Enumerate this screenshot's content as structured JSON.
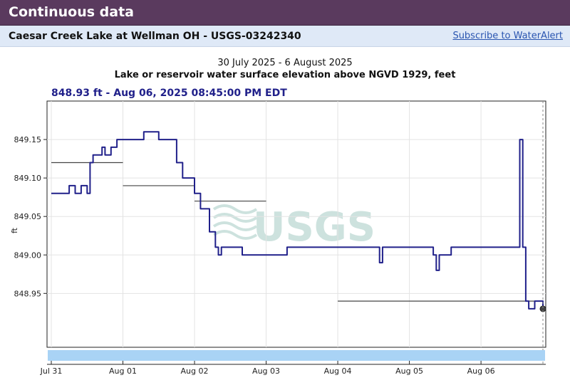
{
  "header": {
    "title": "Continuous data"
  },
  "site_bar": {
    "site_name": "Caesar Creek Lake at Wellman OH - USGS-03242340",
    "subscribe_label": "Subscribe to WaterAlert"
  },
  "tooltip": {
    "text": "848.93 ft - Aug 06, 2025 08:45:00 PM EDT"
  },
  "watermark": {
    "text": "USGS"
  },
  "colors": {
    "header": "#5a3a5e",
    "series": "#20208a",
    "brush": "#a9d3f5",
    "statistic": "#444444"
  },
  "chart_data": {
    "type": "line",
    "title": "Lake or reservoir water surface elevation above NGVD 1929, feet",
    "subtitle": "30 July 2025 - 6 August 2025",
    "ylabel": "ft",
    "xlabel": "",
    "ylim": [
      848.88,
      849.2
    ],
    "xlim": [
      "Jul 31",
      "Aug 06 20:45"
    ],
    "x_ticks": [
      "Jul 31",
      "Aug 01",
      "Aug 02",
      "Aug 03",
      "Aug 04",
      "Aug 05",
      "Aug 06"
    ],
    "y_ticks": [
      "848.95",
      "849.00",
      "849.05",
      "849.10",
      "849.15"
    ],
    "grid": true,
    "series": [
      {
        "values": [
          [
            "Jul 31 00:00",
            849.08
          ],
          [
            "Jul 31 05:00",
            849.08
          ],
          [
            "Jul 31 06:00",
            849.09
          ],
          [
            "Jul 31 08:00",
            849.08
          ],
          [
            "Jul 31 10:00",
            849.09
          ],
          [
            "Jul 31 12:00",
            849.08
          ],
          [
            "Jul 31 13:00",
            849.12
          ],
          [
            "Jul 31 14:00",
            849.13
          ],
          [
            "Jul 31 16:00",
            849.13
          ],
          [
            "Jul 31 17:00",
            849.14
          ],
          [
            "Jul 31 18:00",
            849.13
          ],
          [
            "Jul 31 20:00",
            849.14
          ],
          [
            "Jul 31 21:00",
            849.14
          ],
          [
            "Jul 31 22:00",
            849.15
          ],
          [
            "Aug 01 00:00",
            849.15
          ],
          [
            "Aug 01 06:00",
            849.15
          ],
          [
            "Aug 01 07:00",
            849.16
          ],
          [
            "Aug 01 10:00",
            849.16
          ],
          [
            "Aug 01 12:00",
            849.15
          ],
          [
            "Aug 01 15:00",
            849.15
          ],
          [
            "Aug 01 18:00",
            849.12
          ],
          [
            "Aug 01 20:00",
            849.1
          ],
          [
            "Aug 02 00:00",
            849.08
          ],
          [
            "Aug 02 02:00",
            849.06
          ],
          [
            "Aug 02 05:00",
            849.03
          ],
          [
            "Aug 02 07:00",
            849.01
          ],
          [
            "Aug 02 08:00",
            849.0
          ],
          [
            "Aug 02 09:00",
            849.01
          ],
          [
            "Aug 02 14:00",
            849.01
          ],
          [
            "Aug 02 16:00",
            849.0
          ],
          [
            "Aug 03 00:00",
            849.0
          ],
          [
            "Aug 03 06:00",
            849.0
          ],
          [
            "Aug 03 07:00",
            849.01
          ],
          [
            "Aug 04 00:00",
            849.01
          ],
          [
            "Aug 04 13:00",
            849.01
          ],
          [
            "Aug 04 14:00",
            848.99
          ],
          [
            "Aug 04 15:00",
            849.01
          ],
          [
            "Aug 05 00:00",
            849.01
          ],
          [
            "Aug 05 08:00",
            849.0
          ],
          [
            "Aug 05 09:00",
            848.98
          ],
          [
            "Aug 05 10:00",
            849.0
          ],
          [
            "Aug 05 12:00",
            849.0
          ],
          [
            "Aug 05 14:00",
            849.01
          ],
          [
            "Aug 06 00:00",
            849.01
          ],
          [
            "Aug 06 06:00",
            849.01
          ],
          [
            "Aug 06 12:00",
            849.01
          ],
          [
            "Aug 06 13:00",
            849.15
          ],
          [
            "Aug 06 14:00",
            849.01
          ],
          [
            "Aug 06 15:00",
            848.94
          ],
          [
            "Aug 06 16:00",
            848.93
          ],
          [
            "Aug 06 18:00",
            848.94
          ],
          [
            "Aug 06 20:45",
            848.93
          ]
        ]
      }
    ],
    "statistic_segments": [
      {
        "from": "Jul 31 00:00",
        "to": "Aug 01 00:00",
        "value": 849.12
      },
      {
        "from": "Aug 01 00:00",
        "to": "Aug 02 00:00",
        "value": 849.09
      },
      {
        "from": "Aug 02 00:00",
        "to": "Aug 03 00:00",
        "value": 849.07
      },
      {
        "from": "Aug 04 00:00",
        "to": "Aug 06 20:45",
        "value": 848.94
      }
    ],
    "current_point": {
      "x": "Aug 06 20:45",
      "y": 848.93
    }
  }
}
